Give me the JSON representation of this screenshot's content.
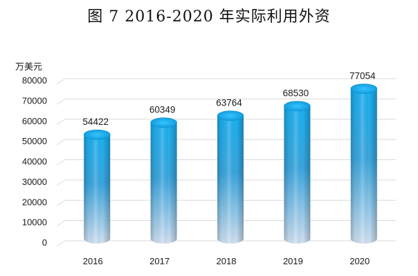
{
  "chart_data": {
    "type": "bar",
    "title": "图 7 2016-2020 年实际利用外资",
    "unit": "万美元",
    "categories": [
      "2016",
      "2017",
      "2018",
      "2019",
      "2020"
    ],
    "values": [
      54422,
      60349,
      63764,
      68530,
      77054
    ],
    "ylim": [
      0,
      80000
    ],
    "yticks": [
      0,
      10000,
      20000,
      30000,
      40000,
      50000,
      60000,
      70000,
      80000
    ],
    "grid": true,
    "colors": {
      "bar_top": "#15aef0",
      "bar_mid": "#2fa8e6",
      "bar_bottom": "#c9dcf0",
      "grid": "#d9d9d9"
    }
  }
}
